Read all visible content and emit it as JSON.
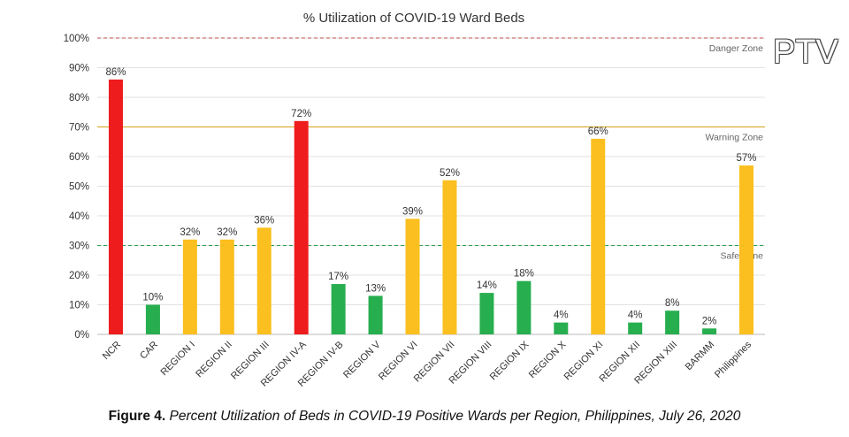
{
  "watermark": "PTV",
  "caption": {
    "lead": "Figure 4.",
    "rest": " Percent Utilization of Beds in COVID-19 Positive Wards per Region, Philippines, July 26, 2020"
  },
  "chart_data": {
    "type": "bar",
    "title": "% Utilization of COVID-19 Ward Beds",
    "xlabel": "",
    "ylabel": "",
    "ylim": [
      0,
      100
    ],
    "yticks": [
      "0%",
      "10%",
      "20%",
      "30%",
      "40%",
      "50%",
      "60%",
      "70%",
      "80%",
      "90%",
      "100%"
    ],
    "grid": true,
    "categories": [
      "NCR",
      "CAR",
      "REGION I",
      "REGION II",
      "REGION III",
      "REGION IV-A",
      "REGION IV-B",
      "REGION V",
      "REGION VI",
      "REGION VII",
      "REGION VIII",
      "REGION IX",
      "REGION X",
      "REGION XI",
      "REGION XII",
      "REGION XIII",
      "BARMM",
      "Philippines"
    ],
    "values": [
      86,
      10,
      32,
      32,
      36,
      72,
      17,
      13,
      39,
      52,
      14,
      18,
      4,
      66,
      4,
      8,
      2,
      57
    ],
    "data_labels": [
      "86%",
      "10%",
      "32%",
      "32%",
      "36%",
      "72%",
      "17%",
      "13%",
      "39%",
      "52%",
      "14%",
      "18%",
      "4%",
      "66%",
      "4%",
      "8%",
      "2%",
      "57%"
    ],
    "colors": {
      "danger": "#ee1c1c",
      "warning": "#fbbf1f",
      "safe": "#27ae4f"
    },
    "zones": [
      {
        "label": "Danger Zone",
        "value": 100,
        "color": "#c0504d"
      },
      {
        "label": "Warning Zone",
        "value": 70,
        "color": "#d4a017"
      },
      {
        "label": "Safe Zone",
        "value": 30,
        "color": "#2e9e4f"
      }
    ]
  }
}
